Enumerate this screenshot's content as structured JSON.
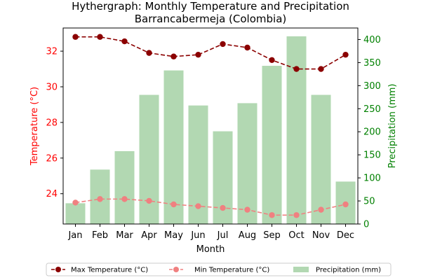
{
  "chart_data": {
    "type": "bar+line",
    "title": "Hythergraph: Monthly Temperature and Precipitation",
    "subtitle": "Barrancabermeja (Colombia)",
    "xlabel": "Month",
    "ylabel_left": "Temperature (°C)",
    "ylabel_right": "Precipitation (mm)",
    "categories": [
      "Jan",
      "Feb",
      "Mar",
      "Apr",
      "May",
      "Jun",
      "Jul",
      "Aug",
      "Sep",
      "Oct",
      "Nov",
      "Dec"
    ],
    "ylim_left": [
      22.3,
      33.3
    ],
    "ylim_right": [
      0,
      425
    ],
    "yticks_left": [
      24,
      26,
      28,
      30,
      32
    ],
    "yticks_right": [
      0,
      50,
      100,
      150,
      200,
      250,
      300,
      350,
      400
    ],
    "grid": false,
    "legend_position": "bottom-center",
    "series": [
      {
        "name": "Max Temperature (°C)",
        "kind": "line",
        "axis": "left",
        "color": "#8b0000",
        "linestyle": "dashed",
        "marker": "circle",
        "values": [
          32.8,
          32.8,
          32.55,
          31.9,
          31.7,
          31.8,
          32.4,
          32.2,
          31.5,
          31.0,
          31.0,
          31.8
        ]
      },
      {
        "name": "Min Temperature (°C)",
        "kind": "line",
        "axis": "left",
        "color": "#f08080",
        "linestyle": "dashed",
        "marker": "circle",
        "values": [
          23.5,
          23.7,
          23.7,
          23.6,
          23.4,
          23.3,
          23.2,
          23.1,
          22.8,
          22.8,
          23.1,
          23.4
        ]
      },
      {
        "name": "Precipitation (mm)",
        "kind": "bar",
        "axis": "right",
        "color": "#b2d8b2",
        "values": [
          45,
          118,
          158,
          280,
          333,
          257,
          201,
          262,
          343,
          407,
          280,
          92
        ]
      }
    ],
    "colors": {
      "left_axis": "#ff0000",
      "right_axis": "#008000",
      "axes": "#000000"
    }
  }
}
